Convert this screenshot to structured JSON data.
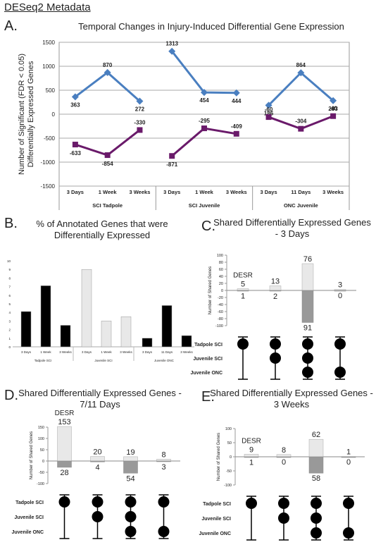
{
  "page_title": "DESeq2 Metadata",
  "colors": {
    "up": "#4a7fc0",
    "down": "#6a1a6a",
    "black": "#000000",
    "light": "#e8e8e8",
    "grey": "#999999"
  },
  "letters": {
    "a": "A.",
    "b": "B.",
    "c": "C.",
    "d": "D.",
    "e": "E."
  },
  "upset_labels": [
    "Tadpole SCI",
    "Juvenile SCI",
    "Juvenile ONC"
  ],
  "upset_ylabel": "Number of Shared Genes",
  "desr_label": "DESR",
  "chart_data": [
    {
      "panel": "A",
      "type": "line",
      "title": "Temporal Changes in Injury-Induced Differential Gene Expression",
      "ylabel": "Number of Significant (FDR < 0.05) Differentially Expressed Genes",
      "ylim": [
        -1500,
        1500
      ],
      "yticks": [
        "1500",
        "1000",
        "500",
        "0",
        "-500",
        "-1000",
        "-1500"
      ],
      "categories": [
        "3 Days",
        "1 Week",
        "3 Weeks",
        "3 Days",
        "1 Week",
        "3 Weeks",
        "3 Days",
        "11 Days",
        "3 Weeks"
      ],
      "groups": [
        "SCI Tadpole",
        "SCI Juvenile",
        "ONC Juvenile"
      ],
      "series": [
        {
          "values": [
            363,
            870,
            272,
            1313,
            454,
            444,
            186,
            864,
            283
          ],
          "labels": [
            "363",
            "870",
            "272",
            "1313",
            "454",
            "444",
            "186",
            "864",
            "283"
          ]
        },
        {
          "values": [
            -633,
            -854,
            -330,
            -871,
            -295,
            -409,
            -60,
            -304,
            -40
          ],
          "labels": [
            "-633",
            "-854",
            "-330",
            "-871",
            "-295",
            "-409",
            "-60",
            "-304",
            "-40"
          ]
        }
      ],
      "grid": true
    },
    {
      "panel": "B",
      "type": "bar",
      "title": "% of Annotated Genes that were Differentially Expressed",
      "ylim": [
        0,
        10
      ],
      "yticks": [
        "0",
        "1",
        "2",
        "3",
        "4",
        "5",
        "6",
        "7",
        "8",
        "9",
        "10"
      ],
      "categories": [
        "3 Days",
        "1 Week",
        "3 Weeks",
        "3 Days",
        "1 Week",
        "3 Weeks",
        "3 Days",
        "11 Days",
        "3 Weeks"
      ],
      "groups": [
        "Tadpole SCI",
        "Juvenile SCI",
        "Juvenile ONC"
      ],
      "values": [
        4.1,
        7.1,
        2.5,
        9.0,
        3.0,
        3.5,
        1.0,
        4.8,
        1.3
      ]
    },
    {
      "panel": "C",
      "type": "bar",
      "title": "Shared Differentially Expressed Genes - 3 Days",
      "ylim": [
        -100,
        100
      ],
      "yticks": [
        "100",
        "80",
        "60",
        "40",
        "20",
        "0",
        "-20",
        "-40",
        "-60",
        "-80",
        "-100"
      ],
      "up": [
        5,
        13,
        76,
        3
      ],
      "down": [
        1,
        2,
        91,
        0
      ],
      "up_labels": [
        "5",
        "13",
        "76",
        "3"
      ],
      "down_labels": [
        "1",
        "2",
        "91",
        "0"
      ],
      "membership": [
        [
          1,
          0,
          0
        ],
        [
          1,
          1,
          0
        ],
        [
          1,
          1,
          1
        ],
        [
          1,
          0,
          1
        ]
      ]
    },
    {
      "panel": "D",
      "type": "bar",
      "title": "Shared Differentially Expressed Genes - 7/11 Days",
      "ylim": [
        -100,
        150
      ],
      "yticks": [
        "150",
        "100",
        "50",
        "0",
        "-50",
        "-100"
      ],
      "up": [
        153,
        20,
        19,
        8
      ],
      "down": [
        28,
        4,
        54,
        3
      ],
      "up_labels": [
        "153",
        "20",
        "19",
        "8"
      ],
      "down_labels": [
        "28",
        "4",
        "54",
        "3"
      ],
      "membership": [
        [
          1,
          0,
          0
        ],
        [
          1,
          1,
          0
        ],
        [
          1,
          1,
          1
        ],
        [
          1,
          0,
          1
        ]
      ]
    },
    {
      "panel": "E",
      "type": "bar",
      "title": "Shared Differentially Expressed Genes - 3 Weeks",
      "ylim": [
        -100,
        100
      ],
      "yticks": [
        "100",
        "50",
        "0",
        "-50",
        "-100"
      ],
      "up": [
        9,
        8,
        62,
        1
      ],
      "down": [
        1,
        0,
        58,
        0
      ],
      "up_labels": [
        "9",
        "8",
        "62",
        "1"
      ],
      "down_labels": [
        "1",
        "0",
        "58",
        "0"
      ],
      "membership": [
        [
          1,
          0,
          0
        ],
        [
          1,
          1,
          0
        ],
        [
          1,
          1,
          1
        ],
        [
          1,
          0,
          1
        ]
      ]
    }
  ]
}
